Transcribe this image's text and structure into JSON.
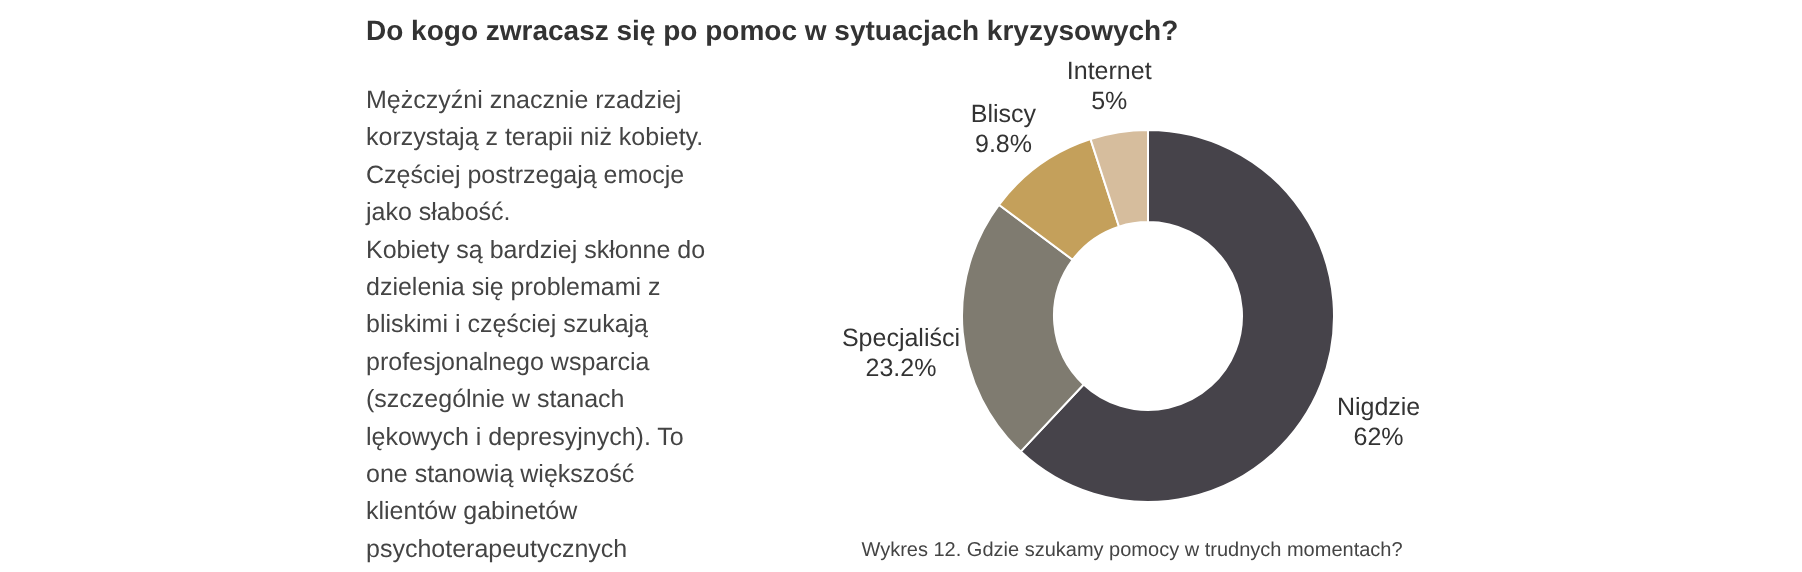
{
  "chart_data": {
    "type": "donut",
    "title": "Do kogo zwracasz się po pomoc w sytuacjach kryzysowych?",
    "categories": [
      "Nigdzie",
      "Specjaliści",
      "Bliscy",
      "Internet"
    ],
    "values": [
      62,
      23.2,
      9.8,
      5
    ],
    "value_labels": [
      "62%",
      "23.2%",
      "9.8%",
      "5%"
    ],
    "colors": [
      "#46434a",
      "#7f7b70",
      "#c4a05b",
      "#d6bd9d"
    ],
    "annotations": [
      "Mężczyźni znacznie rzadziej\nkorzystają z terapii niż kobiety.\nCzęściej postrzegają emocje\njako słabość.\nKobiety są bardziej skłonne do\ndzielenia się problemami z\nbliskimi i częściej szukają\nprofesjonalnego wsparcia\n(szczególnie w stanach\nlękowych i depresyjnych). To\none stanowią większość\nklientów gabinetów\npsychoterapeutycznych",
      "Wykres 12. Gdzie szukamy pomocy w trudnych momentach?"
    ]
  }
}
